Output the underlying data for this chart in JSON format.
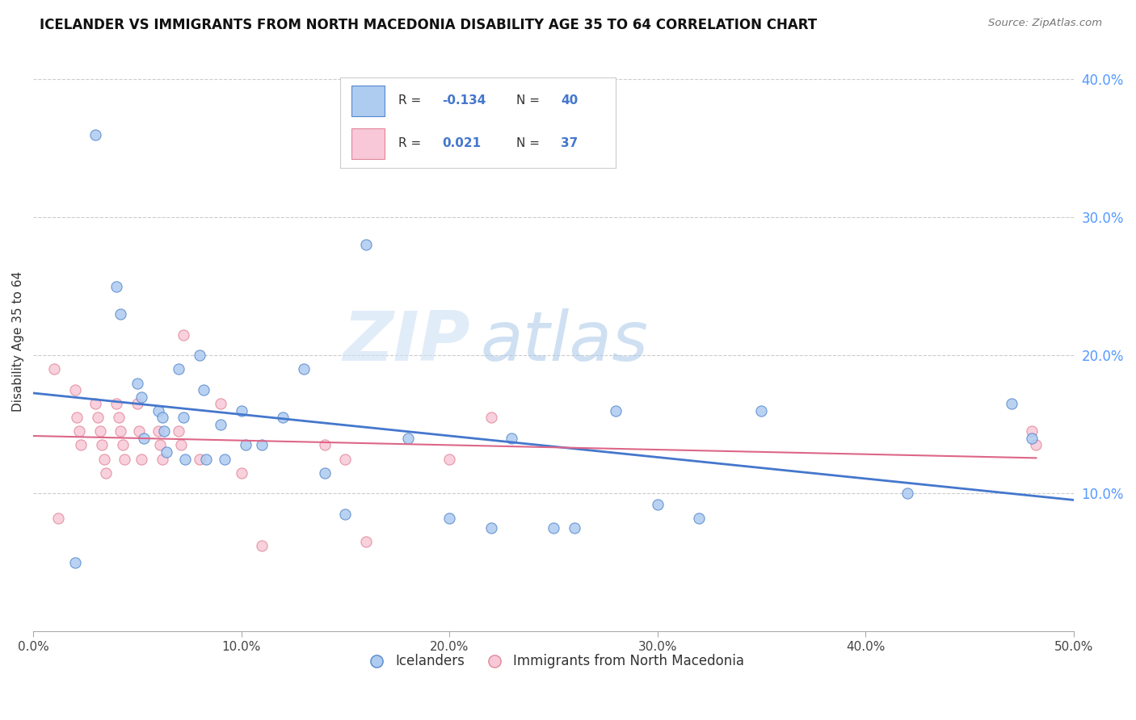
{
  "title": "ICELANDER VS IMMIGRANTS FROM NORTH MACEDONIA DISABILITY AGE 35 TO 64 CORRELATION CHART",
  "source": "Source: ZipAtlas.com",
  "ylabel": "Disability Age 35 to 64",
  "xlim": [
    0.0,
    0.5
  ],
  "ylim": [
    0.0,
    0.42
  ],
  "xticks": [
    0.0,
    0.1,
    0.2,
    0.3,
    0.4,
    0.5
  ],
  "xticklabels": [
    "0.0%",
    "10.0%",
    "20.0%",
    "30.0%",
    "40.0%",
    "50.0%"
  ],
  "yticks_right": [
    0.1,
    0.2,
    0.3,
    0.4
  ],
  "ytick_labels_right": [
    "10.0%",
    "20.0%",
    "30.0%",
    "40.0%"
  ],
  "blue_R": "-0.134",
  "blue_N": "40",
  "pink_R": "0.021",
  "pink_N": "37",
  "blue_color": "#aecbf0",
  "blue_edge_color": "#5588cc",
  "blue_line_color": "#4477cc",
  "pink_color": "#f8c8d8",
  "pink_edge_color": "#e08898",
  "pink_line_color": "#dd6688",
  "watermark_zip": "ZIP",
  "watermark_atlas": "atlas",
  "icelanders_x": [
    0.02,
    0.03,
    0.04,
    0.042,
    0.05,
    0.052,
    0.053,
    0.06,
    0.062,
    0.063,
    0.064,
    0.07,
    0.072,
    0.073,
    0.08,
    0.082,
    0.083,
    0.09,
    0.092,
    0.1,
    0.102,
    0.11,
    0.12,
    0.13,
    0.14,
    0.15,
    0.16,
    0.18,
    0.2,
    0.22,
    0.23,
    0.25,
    0.26,
    0.28,
    0.3,
    0.32,
    0.35,
    0.42,
    0.47,
    0.48
  ],
  "icelanders_y": [
    0.05,
    0.36,
    0.25,
    0.23,
    0.18,
    0.17,
    0.14,
    0.16,
    0.155,
    0.145,
    0.13,
    0.19,
    0.155,
    0.125,
    0.2,
    0.175,
    0.125,
    0.15,
    0.125,
    0.16,
    0.135,
    0.135,
    0.155,
    0.19,
    0.115,
    0.085,
    0.28,
    0.14,
    0.082,
    0.075,
    0.14,
    0.075,
    0.075,
    0.16,
    0.092,
    0.082,
    0.16,
    0.1,
    0.165,
    0.14
  ],
  "macedonia_x": [
    0.01,
    0.012,
    0.02,
    0.021,
    0.022,
    0.023,
    0.03,
    0.031,
    0.032,
    0.033,
    0.034,
    0.035,
    0.04,
    0.041,
    0.042,
    0.043,
    0.044,
    0.05,
    0.051,
    0.052,
    0.06,
    0.061,
    0.062,
    0.07,
    0.071,
    0.072,
    0.08,
    0.09,
    0.1,
    0.11,
    0.14,
    0.15,
    0.16,
    0.2,
    0.22,
    0.48,
    0.482
  ],
  "macedonia_y": [
    0.19,
    0.082,
    0.175,
    0.155,
    0.145,
    0.135,
    0.165,
    0.155,
    0.145,
    0.135,
    0.125,
    0.115,
    0.165,
    0.155,
    0.145,
    0.135,
    0.125,
    0.165,
    0.145,
    0.125,
    0.145,
    0.135,
    0.125,
    0.145,
    0.135,
    0.215,
    0.125,
    0.165,
    0.115,
    0.062,
    0.135,
    0.125,
    0.065,
    0.125,
    0.155,
    0.145,
    0.135
  ]
}
